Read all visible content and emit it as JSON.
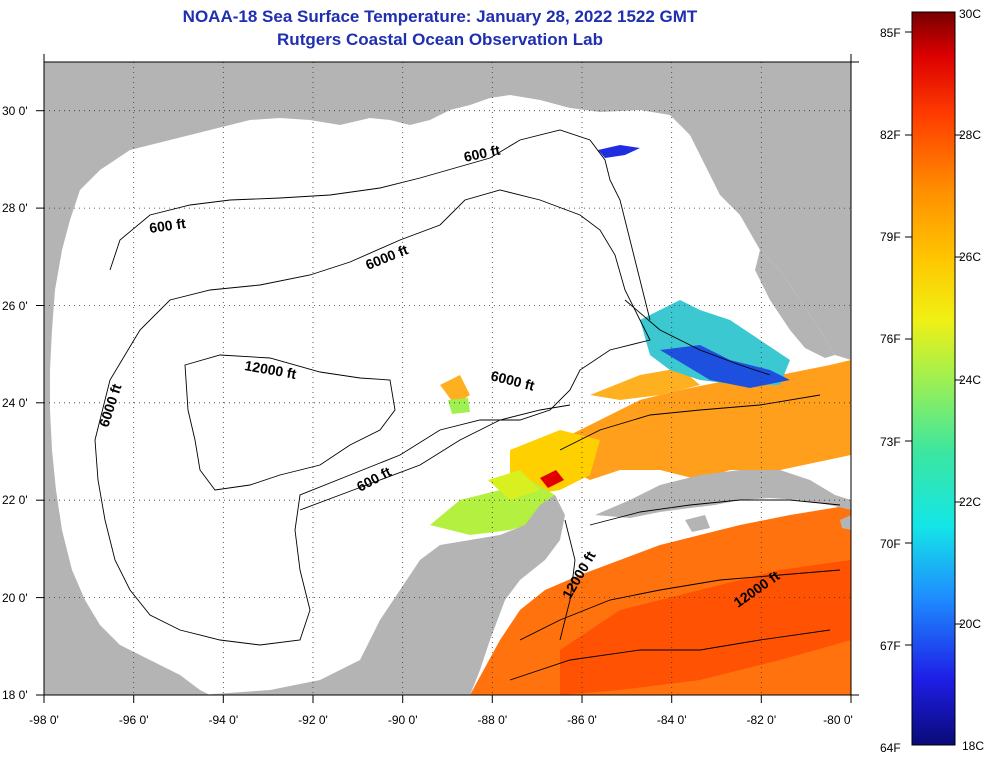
{
  "title": {
    "line1": "NOAA-18 Sea Surface Temperature:  January 28, 2022 1522 GMT",
    "line2": "Rutgers Coastal Ocean Observation Lab"
  },
  "map": {
    "region": "Gulf of Mexico",
    "lon_range": [
      -98,
      -80
    ],
    "lat_range": [
      18,
      31
    ],
    "grid": "dotted",
    "land_color": "#b4b4b4",
    "no_data_color": "#ffffff",
    "x_ticks": [
      "-98 0'",
      "-96 0'",
      "-94 0'",
      "-92 0'",
      "-90 0'",
      "-88 0'",
      "-86 0'",
      "-84 0'",
      "-82 0'",
      "-80 0'"
    ],
    "y_ticks": [
      "18 0'",
      "20 0'",
      "22 0'",
      "24 0'",
      "26 0'",
      "28 0'",
      "30 0'"
    ],
    "contour_labels": [
      "600 ft",
      "600 ft",
      "6000 ft",
      "12000 ft",
      "6000 ft",
      "6000 ft",
      "600 ft",
      "12000 ft",
      "12000 ft"
    ]
  },
  "colorbar": {
    "fahrenheit_labels": [
      "85F",
      "82F",
      "79F",
      "76F",
      "73F",
      "70F",
      "67F",
      "64F"
    ],
    "celsius_labels": [
      "30C",
      "28C",
      "26C",
      "24C",
      "22C",
      "20C",
      "18C"
    ],
    "colors": [
      "#0a0a78",
      "#1e1ee6",
      "#1e8cff",
      "#14e6e6",
      "#3ce6a0",
      "#a0f050",
      "#f0f014",
      "#ffc800",
      "#ff8c00",
      "#ff3c00",
      "#dc0000",
      "#780000"
    ]
  }
}
